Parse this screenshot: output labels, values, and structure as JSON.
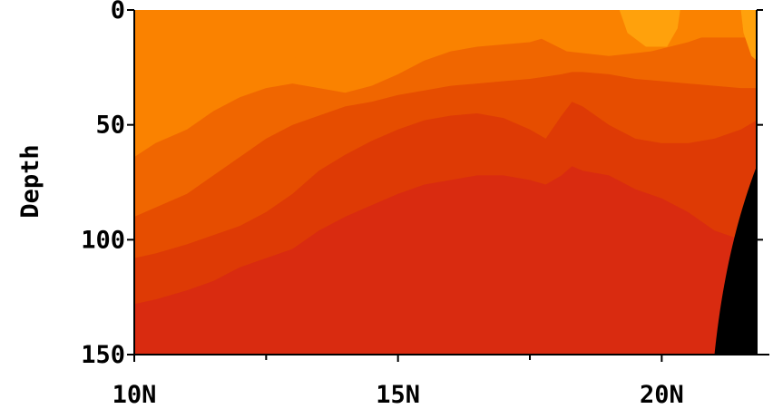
{
  "chart_data": {
    "type": "heatmap",
    "title": "",
    "xlabel": "",
    "ylabel": "Depth",
    "xlim": [
      10,
      21.8
    ],
    "ylim": [
      150,
      0
    ],
    "x_unit": "N",
    "y_reversed": true,
    "x_ticks": [
      {
        "value": 10,
        "label": "10N"
      },
      {
        "value": 15,
        "label": "15N"
      },
      {
        "value": 20,
        "label": "20N"
      }
    ],
    "x_minor_ticks": [
      12.5,
      17.5
    ],
    "y_ticks": [
      {
        "value": 0,
        "label": "0"
      },
      {
        "value": 50,
        "label": "50"
      },
      {
        "value": 100,
        "label": "100"
      },
      {
        "value": 150,
        "label": "150"
      }
    ],
    "grid": false,
    "levels": [
      {
        "name": "level-1",
        "color": "#FFA10C"
      },
      {
        "name": "level-2",
        "color": "#FA8200"
      },
      {
        "name": "level-3",
        "color": "#F06600"
      },
      {
        "name": "level-4",
        "color": "#E64D00"
      },
      {
        "name": "level-5",
        "color": "#DE3A05"
      },
      {
        "name": "level-6",
        "color": "#D92B10"
      }
    ],
    "boundary_depths": {
      "x": [
        10.0,
        10.4,
        11.0,
        11.5,
        12.0,
        12.5,
        13.0,
        13.5,
        14.0,
        14.5,
        15.0,
        15.5,
        16.0,
        16.5,
        17.0,
        17.5,
        17.8,
        18.1,
        18.3,
        18.5,
        19.0,
        19.5,
        20.0,
        20.5,
        21.0,
        21.5,
        21.8
      ],
      "b1": [
        64,
        58,
        52,
        44,
        38,
        34,
        32,
        34,
        36,
        33,
        28,
        22,
        18,
        16,
        15,
        14,
        12,
        10,
        8,
        8,
        10,
        12,
        12,
        12,
        12,
        12,
        12
      ],
      "b2": [
        90,
        86,
        80,
        72,
        64,
        56,
        50,
        46,
        42,
        40,
        37,
        35,
        33,
        32,
        31,
        30,
        29,
        28,
        27,
        27,
        28,
        30,
        31,
        32,
        33,
        34,
        34
      ],
      "b3": [
        108,
        106,
        102,
        98,
        94,
        88,
        80,
        70,
        63,
        57,
        52,
        48,
        46,
        45,
        47,
        52,
        56,
        46,
        40,
        42,
        50,
        56,
        58,
        58,
        56,
        52,
        48
      ],
      "b4": [
        128,
        126,
        122,
        118,
        112,
        108,
        104,
        96,
        90,
        85,
        80,
        76,
        74,
        72,
        72,
        74,
        76,
        72,
        68,
        70,
        72,
        78,
        82,
        88,
        96,
        100,
        100
      ]
    },
    "land_mask": {
      "name": "land",
      "color": "#000000",
      "points": [
        [
          21.0,
          150
        ],
        [
          21.15,
          120
        ],
        [
          21.35,
          98
        ],
        [
          21.55,
          82
        ],
        [
          21.8,
          70
        ],
        [
          21.8,
          150
        ]
      ]
    },
    "warm_tongues": [
      {
        "color": "#FA8200",
        "points": [
          [
            10.2,
            0
          ],
          [
            10.35,
            20
          ],
          [
            10.6,
            40
          ],
          [
            10.85,
            48
          ],
          [
            11.3,
            44
          ],
          [
            11.6,
            30
          ],
          [
            11.8,
            0
          ]
        ]
      },
      {
        "color": "#FA8200",
        "points": [
          [
            12.8,
            0
          ],
          [
            13.0,
            18
          ],
          [
            13.2,
            28
          ],
          [
            13.5,
            31
          ],
          [
            14.0,
            30
          ],
          [
            14.4,
            22
          ],
          [
            14.6,
            10
          ],
          [
            14.7,
            0
          ]
        ]
      },
      {
        "color": "#FA8200",
        "points": [
          [
            17.2,
            0
          ],
          [
            17.5,
            10
          ],
          [
            18.2,
            18
          ],
          [
            19.0,
            20
          ],
          [
            19.8,
            18
          ],
          [
            20.5,
            14
          ],
          [
            21.0,
            10
          ],
          [
            21.3,
            0
          ]
        ]
      },
      {
        "color": "#FFA10C",
        "points": [
          [
            19.2,
            0
          ],
          [
            19.35,
            10
          ],
          [
            19.7,
            16
          ],
          [
            20.1,
            16
          ],
          [
            20.3,
            8
          ],
          [
            20.35,
            0
          ]
        ]
      },
      {
        "color": "#FFA10C",
        "points": [
          [
            21.5,
            0
          ],
          [
            21.55,
            10
          ],
          [
            21.7,
            20
          ],
          [
            21.8,
            22
          ],
          [
            21.8,
            0
          ]
        ]
      }
    ]
  }
}
